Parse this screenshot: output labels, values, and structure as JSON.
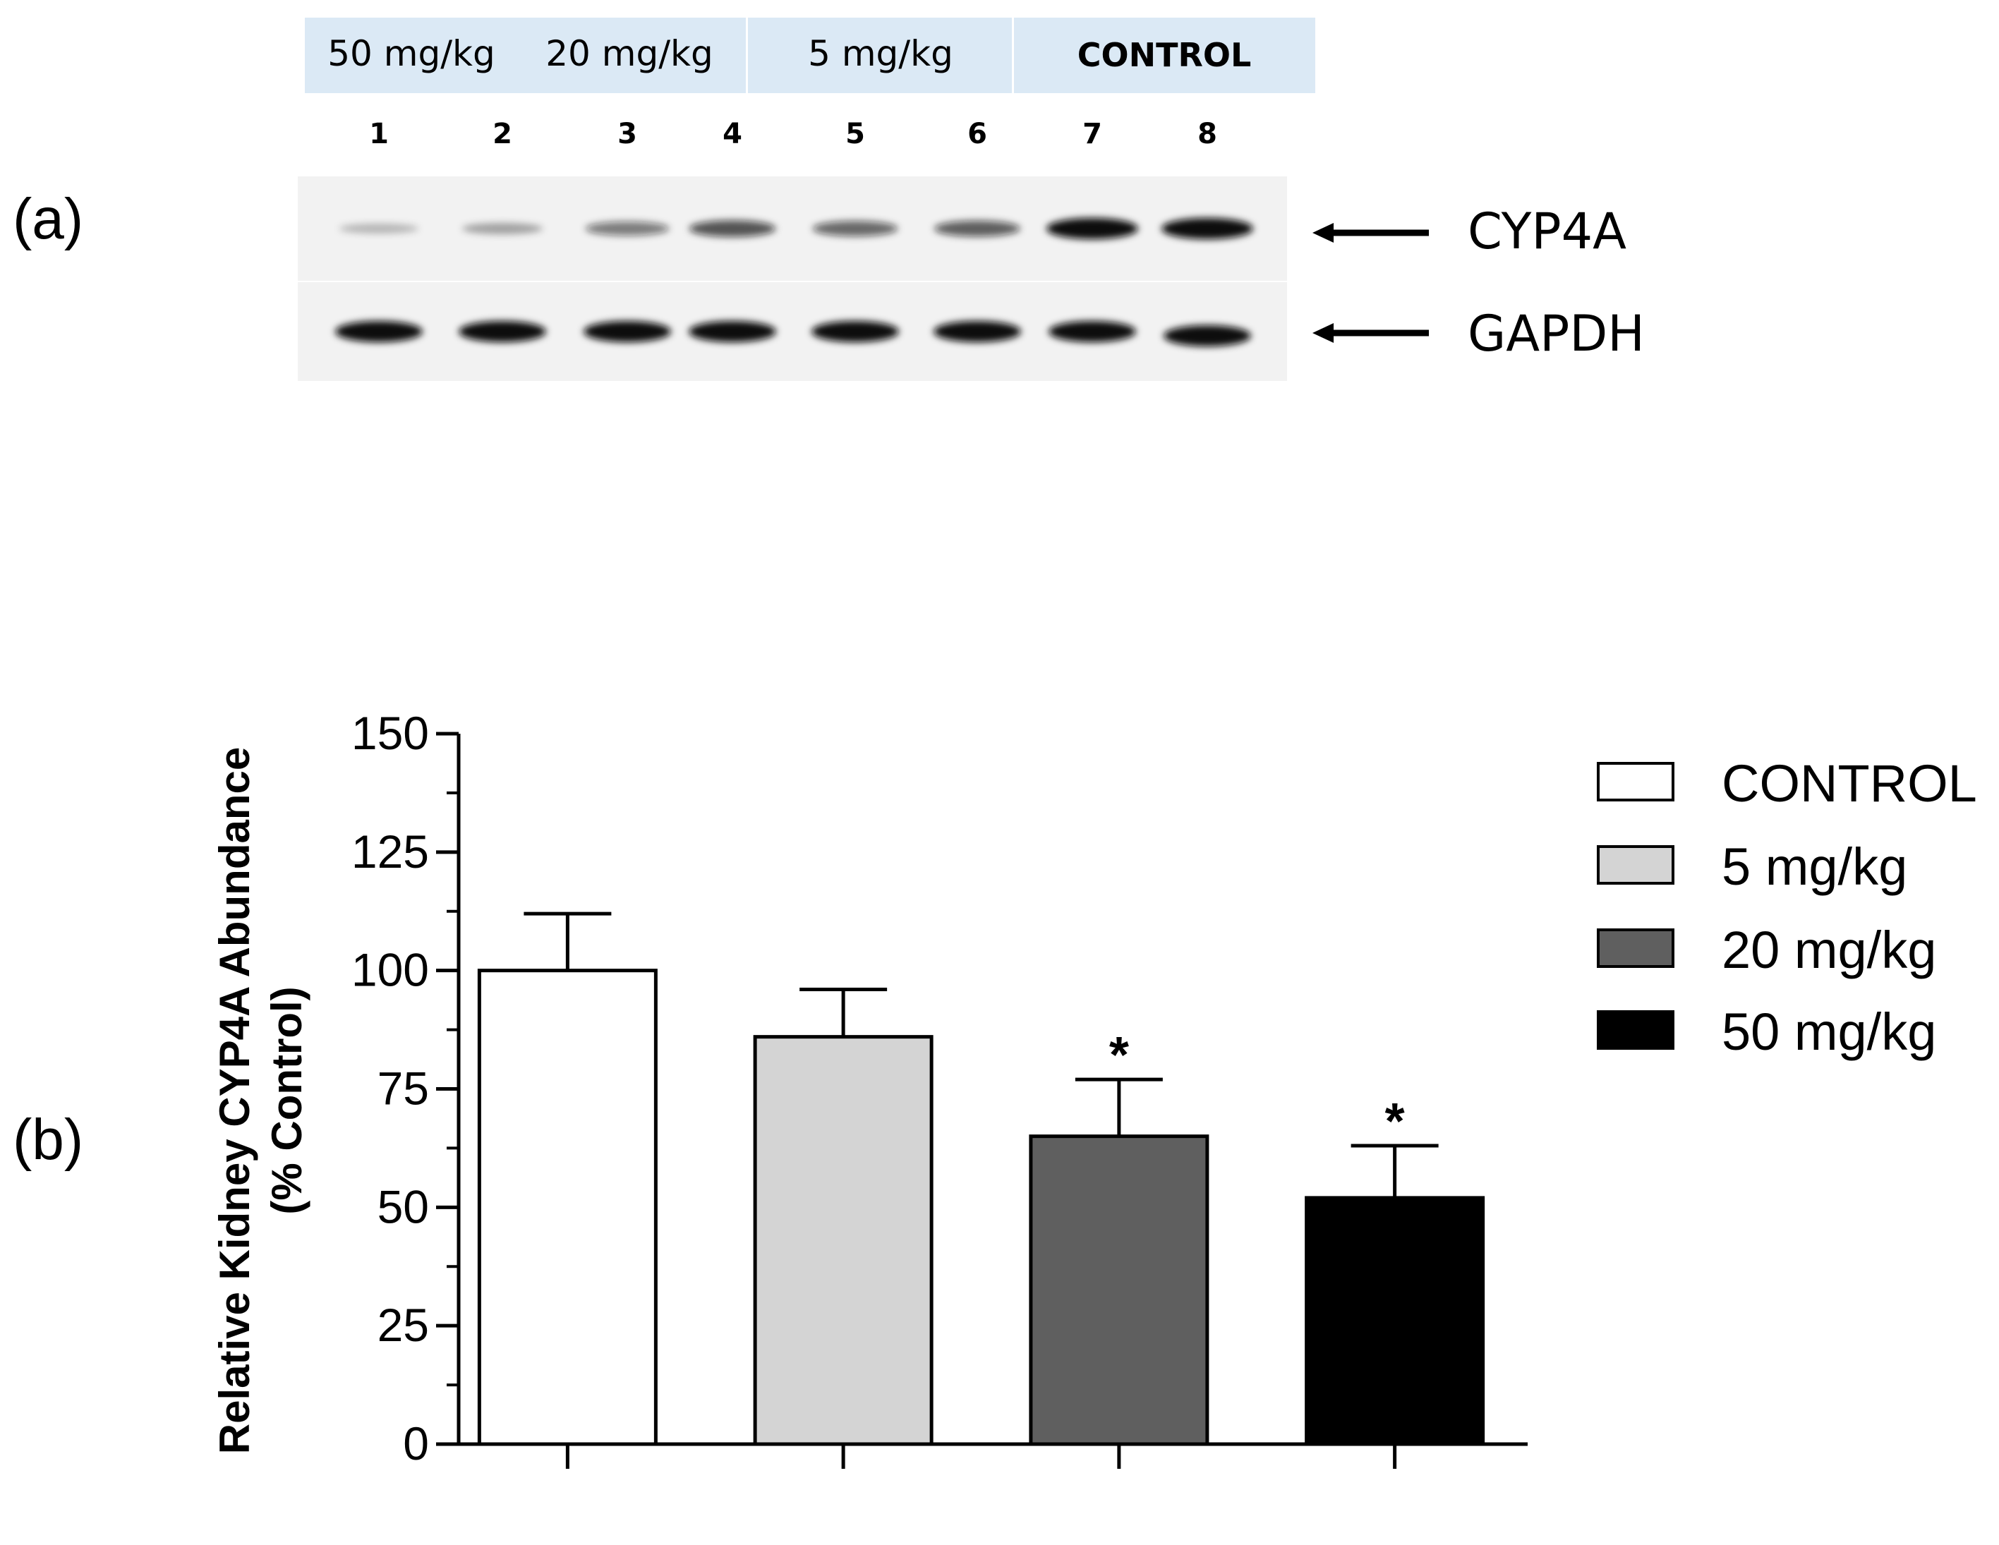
{
  "panel_a": {
    "label": "(a)",
    "group_headers": [
      {
        "label": "50 mg/kg",
        "bold": false
      },
      {
        "label": "20 mg/kg",
        "bold": false
      },
      {
        "label": "5 mg/kg",
        "bold": false
      },
      {
        "label": "CONTROL",
        "bold": true
      }
    ],
    "lane_numbers": [
      "1",
      "2",
      "3",
      "4",
      "5",
      "6",
      "7",
      "8"
    ],
    "bands": [
      {
        "name": "CYP4A",
        "intensities": [
          0.12,
          0.22,
          0.45,
          0.65,
          0.55,
          0.6,
          1.0,
          1.0
        ]
      },
      {
        "name": "GAPDH",
        "intensities": [
          1.0,
          1.0,
          1.0,
          1.0,
          1.0,
          1.0,
          1.0,
          1.0
        ]
      }
    ],
    "colors": {
      "header_bg": "#dbe9f5",
      "blot_bg": "#f2f2f2",
      "band": "#101010"
    }
  },
  "panel_b": {
    "label": "(b)"
  },
  "chart_data": {
    "type": "bar",
    "categories": [
      "CONTROL",
      "5 mg/kg",
      "20 mg/kg",
      "50 mg/kg"
    ],
    "values": [
      100,
      86,
      65,
      52
    ],
    "errors": [
      12,
      10,
      12,
      11
    ],
    "significance": [
      "",
      "",
      "*",
      "*"
    ],
    "bar_colors": [
      "#ffffff",
      "#d4d4d4",
      "#5f5f5f",
      "#000000"
    ],
    "ylabel_line1": "Relative Kidney CYP4A Abundance",
    "ylabel_line2": "(% Control)",
    "ylim": [
      0,
      150
    ],
    "yticks": [
      0,
      25,
      50,
      75,
      100,
      125,
      150
    ],
    "ytick_labels": [
      "0",
      "25",
      "50",
      "75",
      "100",
      "125",
      "150"
    ],
    "legend": {
      "placement": "right",
      "entries": [
        {
          "label": "CONTROL",
          "color": "#ffffff"
        },
        {
          "label": "5 mg/kg",
          "color": "#d4d4d4"
        },
        {
          "label": "20 mg/kg",
          "color": "#5f5f5f"
        },
        {
          "label": "50 mg/kg",
          "color": "#000000"
        }
      ]
    },
    "grid": false
  }
}
